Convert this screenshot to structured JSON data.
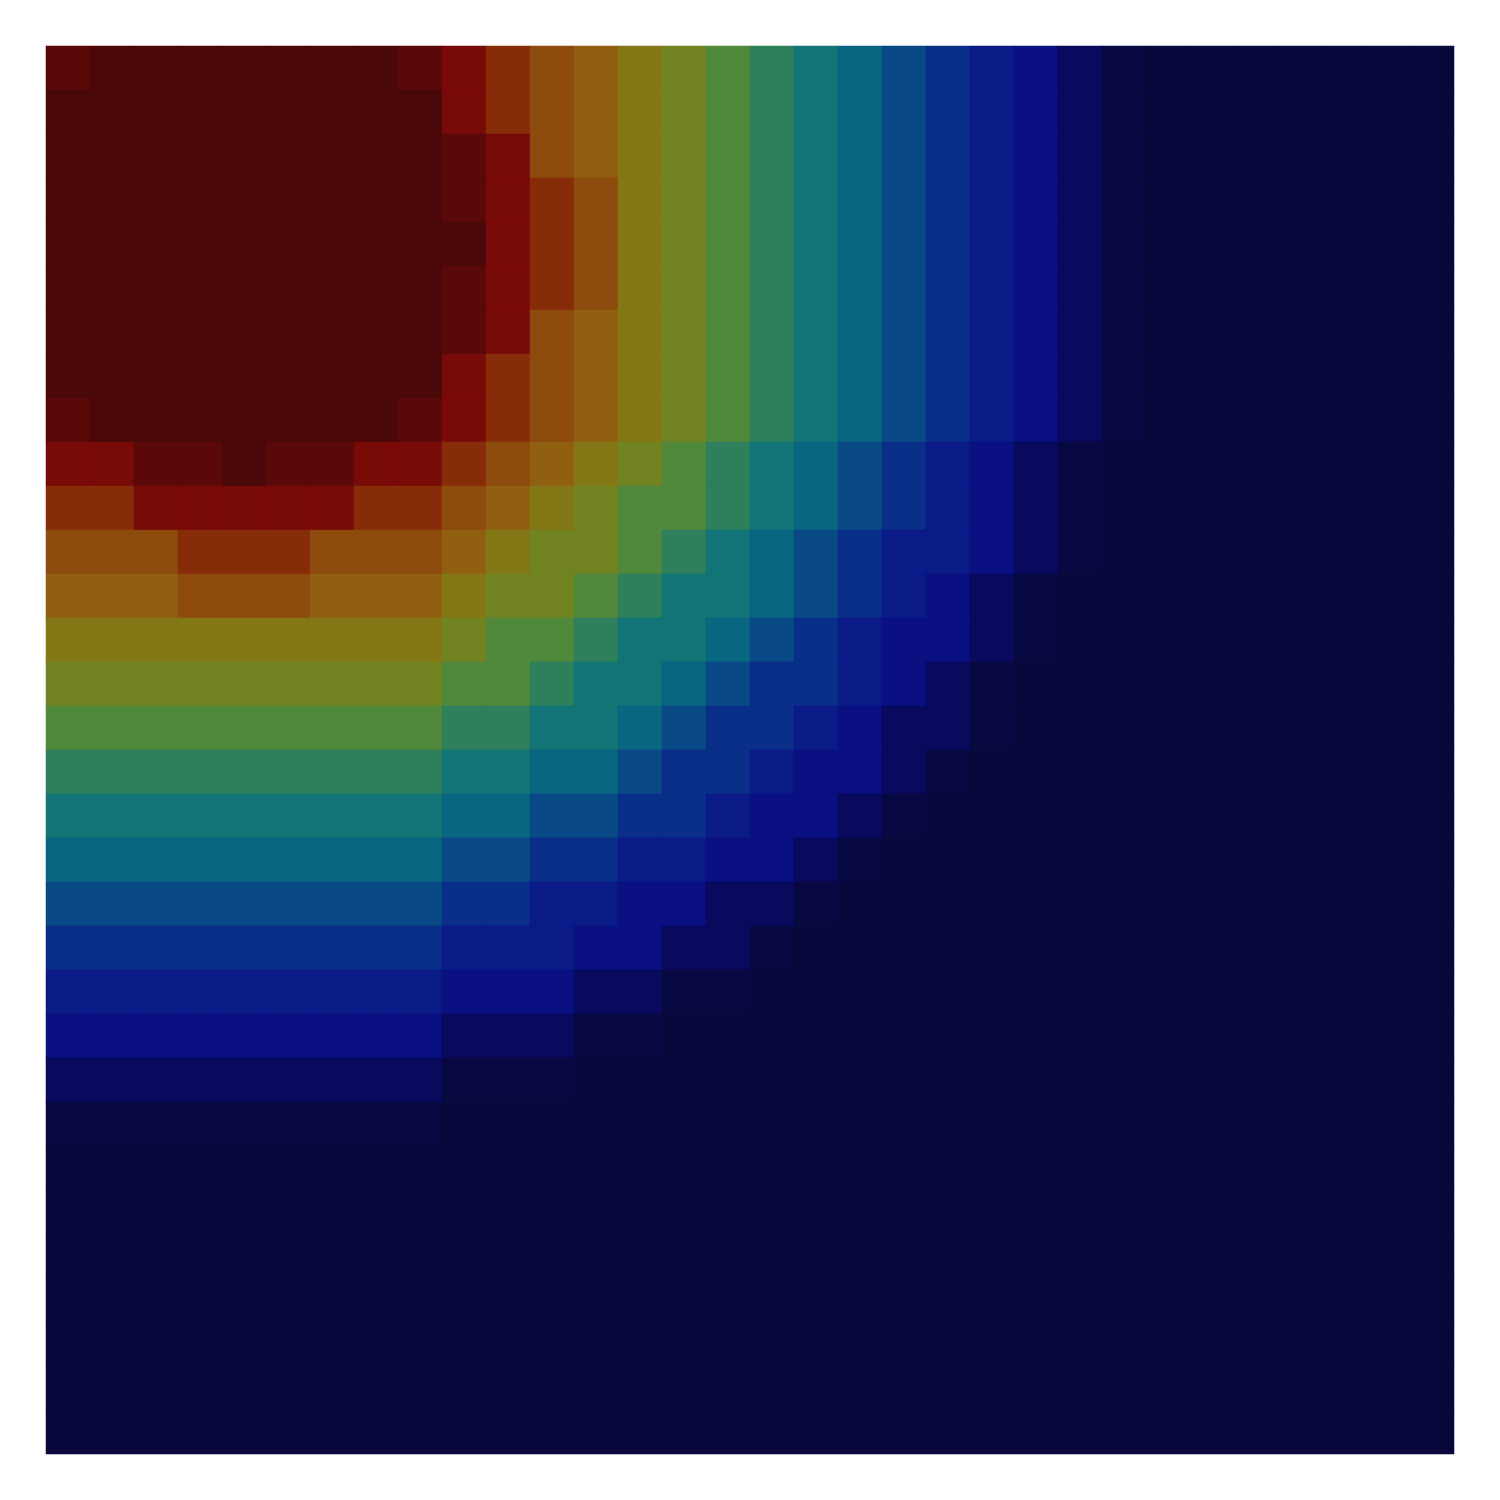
{
  "chart_data": {
    "type": "heatmap",
    "tick_labels": false,
    "cells": [
      [
        0.95,
        0.98,
        0.98,
        0.98,
        0.98,
        0.98,
        0.98,
        0.98,
        0.95,
        0.9,
        0.82,
        0.75,
        0.7,
        0.63,
        0.58,
        0.52,
        0.47,
        0.43,
        0.4,
        0.35,
        0.3,
        0.25,
        0.2,
        0.1,
        0.05,
        0.04,
        0.04,
        0.04,
        0.04,
        0.04,
        0.04,
        0.04
      ],
      [
        0.98,
        0.98,
        0.98,
        0.98,
        0.98,
        0.98,
        0.98,
        0.98,
        0.98,
        0.9,
        0.82,
        0.75,
        0.7,
        0.63,
        0.58,
        0.52,
        0.47,
        0.43,
        0.4,
        0.35,
        0.3,
        0.25,
        0.2,
        0.1,
        0.05,
        0.04,
        0.04,
        0.04,
        0.04,
        0.04,
        0.04,
        0.04
      ],
      [
        0.98,
        0.98,
        0.98,
        0.98,
        0.98,
        0.98,
        0.98,
        0.98,
        0.98,
        0.95,
        0.9,
        0.75,
        0.7,
        0.63,
        0.58,
        0.52,
        0.47,
        0.43,
        0.4,
        0.35,
        0.3,
        0.25,
        0.2,
        0.1,
        0.05,
        0.04,
        0.04,
        0.04,
        0.04,
        0.04,
        0.04,
        0.04
      ],
      [
        0.98,
        0.98,
        0.98,
        0.98,
        0.98,
        0.98,
        0.98,
        0.98,
        0.98,
        0.95,
        0.9,
        0.82,
        0.75,
        0.63,
        0.58,
        0.52,
        0.47,
        0.43,
        0.4,
        0.35,
        0.3,
        0.25,
        0.2,
        0.1,
        0.05,
        0.04,
        0.04,
        0.04,
        0.04,
        0.04,
        0.04,
        0.04
      ],
      [
        0.98,
        0.98,
        0.98,
        0.98,
        0.98,
        0.98,
        0.98,
        0.98,
        0.98,
        0.98,
        0.9,
        0.82,
        0.75,
        0.63,
        0.58,
        0.52,
        0.47,
        0.43,
        0.4,
        0.35,
        0.3,
        0.25,
        0.2,
        0.1,
        0.05,
        0.04,
        0.04,
        0.04,
        0.04,
        0.04,
        0.04,
        0.04
      ],
      [
        0.98,
        0.98,
        0.98,
        0.98,
        0.98,
        0.98,
        0.98,
        0.98,
        0.98,
        0.95,
        0.9,
        0.82,
        0.75,
        0.63,
        0.58,
        0.52,
        0.47,
        0.43,
        0.4,
        0.35,
        0.3,
        0.25,
        0.2,
        0.1,
        0.05,
        0.04,
        0.04,
        0.04,
        0.04,
        0.04,
        0.04,
        0.04
      ],
      [
        0.98,
        0.98,
        0.98,
        0.98,
        0.98,
        0.98,
        0.98,
        0.98,
        0.98,
        0.95,
        0.9,
        0.75,
        0.7,
        0.63,
        0.58,
        0.52,
        0.47,
        0.43,
        0.4,
        0.35,
        0.3,
        0.25,
        0.2,
        0.1,
        0.05,
        0.04,
        0.04,
        0.04,
        0.04,
        0.04,
        0.04,
        0.04
      ],
      [
        0.98,
        0.98,
        0.98,
        0.98,
        0.98,
        0.98,
        0.98,
        0.98,
        0.98,
        0.9,
        0.82,
        0.75,
        0.7,
        0.63,
        0.58,
        0.52,
        0.47,
        0.43,
        0.4,
        0.35,
        0.3,
        0.25,
        0.2,
        0.1,
        0.05,
        0.04,
        0.04,
        0.04,
        0.04,
        0.04,
        0.04,
        0.04
      ],
      [
        0.95,
        0.98,
        0.98,
        0.98,
        0.98,
        0.98,
        0.98,
        0.98,
        0.95,
        0.9,
        0.82,
        0.75,
        0.7,
        0.63,
        0.58,
        0.52,
        0.47,
        0.43,
        0.4,
        0.35,
        0.3,
        0.25,
        0.2,
        0.1,
        0.05,
        0.04,
        0.04,
        0.04,
        0.04,
        0.04,
        0.04,
        0.04
      ],
      [
        0.9,
        0.9,
        0.95,
        0.95,
        0.98,
        0.95,
        0.95,
        0.9,
        0.9,
        0.82,
        0.75,
        0.7,
        0.63,
        0.58,
        0.52,
        0.47,
        0.43,
        0.4,
        0.35,
        0.3,
        0.25,
        0.2,
        0.1,
        0.05,
        0.04,
        0.04,
        0.04,
        0.04,
        0.04,
        0.04,
        0.04,
        0.04
      ],
      [
        0.82,
        0.82,
        0.9,
        0.9,
        0.9,
        0.9,
        0.9,
        0.82,
        0.82,
        0.75,
        0.7,
        0.63,
        0.58,
        0.52,
        0.52,
        0.47,
        0.43,
        0.4,
        0.35,
        0.3,
        0.25,
        0.2,
        0.1,
        0.05,
        0.04,
        0.04,
        0.04,
        0.04,
        0.04,
        0.04,
        0.04,
        0.04
      ],
      [
        0.75,
        0.75,
        0.75,
        0.82,
        0.82,
        0.82,
        0.75,
        0.75,
        0.75,
        0.7,
        0.63,
        0.58,
        0.58,
        0.52,
        0.47,
        0.43,
        0.4,
        0.35,
        0.3,
        0.25,
        0.25,
        0.2,
        0.1,
        0.05,
        0.04,
        0.04,
        0.04,
        0.04,
        0.04,
        0.04,
        0.04,
        0.04
      ],
      [
        0.7,
        0.7,
        0.7,
        0.75,
        0.75,
        0.75,
        0.7,
        0.7,
        0.7,
        0.63,
        0.58,
        0.58,
        0.52,
        0.47,
        0.43,
        0.43,
        0.4,
        0.35,
        0.3,
        0.25,
        0.2,
        0.1,
        0.05,
        0.04,
        0.04,
        0.04,
        0.04,
        0.04,
        0.04,
        0.04,
        0.04,
        0.04
      ],
      [
        0.63,
        0.63,
        0.63,
        0.63,
        0.63,
        0.63,
        0.63,
        0.63,
        0.63,
        0.58,
        0.52,
        0.52,
        0.47,
        0.43,
        0.43,
        0.4,
        0.35,
        0.3,
        0.25,
        0.2,
        0.2,
        0.1,
        0.05,
        0.04,
        0.04,
        0.04,
        0.04,
        0.04,
        0.04,
        0.04,
        0.04,
        0.04
      ],
      [
        0.58,
        0.58,
        0.58,
        0.58,
        0.58,
        0.58,
        0.58,
        0.58,
        0.58,
        0.52,
        0.52,
        0.47,
        0.43,
        0.43,
        0.4,
        0.35,
        0.3,
        0.3,
        0.25,
        0.2,
        0.1,
        0.05,
        0.04,
        0.04,
        0.04,
        0.04,
        0.04,
        0.04,
        0.04,
        0.04,
        0.04,
        0.04
      ],
      [
        0.52,
        0.52,
        0.52,
        0.52,
        0.52,
        0.52,
        0.52,
        0.52,
        0.52,
        0.47,
        0.47,
        0.43,
        0.43,
        0.4,
        0.35,
        0.3,
        0.3,
        0.25,
        0.2,
        0.1,
        0.1,
        0.05,
        0.04,
        0.04,
        0.04,
        0.04,
        0.04,
        0.04,
        0.04,
        0.04,
        0.04,
        0.04
      ],
      [
        0.47,
        0.47,
        0.47,
        0.47,
        0.47,
        0.47,
        0.47,
        0.47,
        0.47,
        0.43,
        0.43,
        0.4,
        0.4,
        0.35,
        0.3,
        0.3,
        0.25,
        0.2,
        0.2,
        0.1,
        0.05,
        0.04,
        0.04,
        0.04,
        0.04,
        0.04,
        0.04,
        0.04,
        0.04,
        0.04,
        0.04,
        0.04
      ],
      [
        0.43,
        0.43,
        0.43,
        0.43,
        0.43,
        0.43,
        0.43,
        0.43,
        0.43,
        0.4,
        0.4,
        0.35,
        0.35,
        0.3,
        0.3,
        0.25,
        0.2,
        0.2,
        0.1,
        0.05,
        0.04,
        0.04,
        0.04,
        0.04,
        0.04,
        0.04,
        0.04,
        0.04,
        0.04,
        0.04,
        0.04,
        0.04
      ],
      [
        0.4,
        0.4,
        0.4,
        0.4,
        0.4,
        0.4,
        0.4,
        0.4,
        0.4,
        0.35,
        0.35,
        0.3,
        0.3,
        0.25,
        0.25,
        0.2,
        0.2,
        0.1,
        0.05,
        0.04,
        0.04,
        0.04,
        0.04,
        0.04,
        0.04,
        0.04,
        0.04,
        0.04,
        0.04,
        0.04,
        0.04,
        0.04
      ],
      [
        0.35,
        0.35,
        0.35,
        0.35,
        0.35,
        0.35,
        0.35,
        0.35,
        0.35,
        0.3,
        0.3,
        0.25,
        0.25,
        0.2,
        0.2,
        0.1,
        0.1,
        0.05,
        0.04,
        0.04,
        0.04,
        0.04,
        0.04,
        0.04,
        0.04,
        0.04,
        0.04,
        0.04,
        0.04,
        0.04,
        0.04,
        0.04
      ],
      [
        0.3,
        0.3,
        0.3,
        0.3,
        0.3,
        0.3,
        0.3,
        0.3,
        0.3,
        0.25,
        0.25,
        0.25,
        0.2,
        0.2,
        0.1,
        0.1,
        0.05,
        0.04,
        0.04,
        0.04,
        0.04,
        0.04,
        0.04,
        0.04,
        0.04,
        0.04,
        0.04,
        0.04,
        0.04,
        0.04,
        0.04,
        0.04
      ],
      [
        0.25,
        0.25,
        0.25,
        0.25,
        0.25,
        0.25,
        0.25,
        0.25,
        0.25,
        0.2,
        0.2,
        0.2,
        0.1,
        0.1,
        0.05,
        0.05,
        0.04,
        0.04,
        0.04,
        0.04,
        0.04,
        0.04,
        0.04,
        0.04,
        0.04,
        0.04,
        0.04,
        0.04,
        0.04,
        0.04,
        0.04,
        0.04
      ],
      [
        0.2,
        0.2,
        0.2,
        0.2,
        0.2,
        0.2,
        0.2,
        0.2,
        0.2,
        0.1,
        0.1,
        0.1,
        0.05,
        0.05,
        0.04,
        0.04,
        0.04,
        0.04,
        0.04,
        0.04,
        0.04,
        0.04,
        0.04,
        0.04,
        0.04,
        0.04,
        0.04,
        0.04,
        0.04,
        0.04,
        0.04,
        0.04
      ],
      [
        0.1,
        0.1,
        0.1,
        0.1,
        0.1,
        0.1,
        0.1,
        0.1,
        0.1,
        0.05,
        0.05,
        0.05,
        0.04,
        0.04,
        0.04,
        0.04,
        0.04,
        0.04,
        0.04,
        0.04,
        0.04,
        0.04,
        0.04,
        0.04,
        0.04,
        0.04,
        0.04,
        0.04,
        0.04,
        0.04,
        0.04,
        0.04
      ],
      [
        0.05,
        0.05,
        0.05,
        0.05,
        0.05,
        0.05,
        0.05,
        0.05,
        0.05,
        0.04,
        0.04,
        0.04,
        0.04,
        0.04,
        0.04,
        0.04,
        0.04,
        0.04,
        0.04,
        0.04,
        0.04,
        0.04,
        0.04,
        0.04,
        0.04,
        0.04,
        0.04,
        0.04,
        0.04,
        0.04,
        0.04,
        0.04
      ],
      [
        0.04,
        0.04,
        0.04,
        0.04,
        0.04,
        0.04,
        0.04,
        0.04,
        0.04,
        0.04,
        0.04,
        0.04,
        0.04,
        0.04,
        0.04,
        0.04,
        0.04,
        0.04,
        0.04,
        0.04,
        0.04,
        0.04,
        0.04,
        0.04,
        0.04,
        0.04,
        0.04,
        0.04,
        0.04,
        0.04,
        0.04,
        0.04
      ],
      [
        0.04,
        0.04,
        0.04,
        0.04,
        0.04,
        0.04,
        0.04,
        0.04,
        0.04,
        0.04,
        0.04,
        0.04,
        0.04,
        0.04,
        0.04,
        0.04,
        0.04,
        0.04,
        0.04,
        0.04,
        0.04,
        0.04,
        0.04,
        0.04,
        0.04,
        0.04,
        0.04,
        0.04,
        0.04,
        0.04,
        0.04,
        0.04
      ],
      [
        0.04,
        0.04,
        0.04,
        0.04,
        0.04,
        0.04,
        0.04,
        0.04,
        0.04,
        0.04,
        0.04,
        0.04,
        0.04,
        0.04,
        0.04,
        0.04,
        0.04,
        0.04,
        0.04,
        0.04,
        0.04,
        0.04,
        0.04,
        0.04,
        0.04,
        0.04,
        0.04,
        0.04,
        0.04,
        0.04,
        0.04,
        0.04
      ],
      [
        0.04,
        0.04,
        0.04,
        0.04,
        0.04,
        0.04,
        0.04,
        0.04,
        0.04,
        0.04,
        0.04,
        0.04,
        0.04,
        0.04,
        0.04,
        0.04,
        0.04,
        0.04,
        0.04,
        0.04,
        0.04,
        0.04,
        0.04,
        0.04,
        0.04,
        0.04,
        0.04,
        0.04,
        0.04,
        0.04,
        0.04,
        0.04
      ],
      [
        0.04,
        0.04,
        0.04,
        0.04,
        0.04,
        0.04,
        0.04,
        0.04,
        0.04,
        0.04,
        0.04,
        0.04,
        0.04,
        0.04,
        0.04,
        0.04,
        0.04,
        0.04,
        0.04,
        0.04,
        0.04,
        0.04,
        0.04,
        0.04,
        0.04,
        0.04,
        0.04,
        0.04,
        0.04,
        0.04,
        0.04,
        0.04
      ],
      [
        0.04,
        0.04,
        0.04,
        0.04,
        0.04,
        0.04,
        0.04,
        0.04,
        0.04,
        0.04,
        0.04,
        0.04,
        0.04,
        0.04,
        0.04,
        0.04,
        0.04,
        0.04,
        0.04,
        0.04,
        0.04,
        0.04,
        0.04,
        0.04,
        0.04,
        0.04,
        0.04,
        0.04,
        0.04,
        0.04,
        0.04,
        0.04
      ],
      [
        0.04,
        0.04,
        0.04,
        0.04,
        0.04,
        0.04,
        0.04,
        0.04,
        0.04,
        0.04,
        0.04,
        0.04,
        0.04,
        0.04,
        0.04,
        0.04,
        0.04,
        0.04,
        0.04,
        0.04,
        0.04,
        0.04,
        0.04,
        0.04,
        0.04,
        0.04,
        0.04,
        0.04,
        0.04,
        0.04,
        0.04,
        0.04
      ]
    ]
  }
}
